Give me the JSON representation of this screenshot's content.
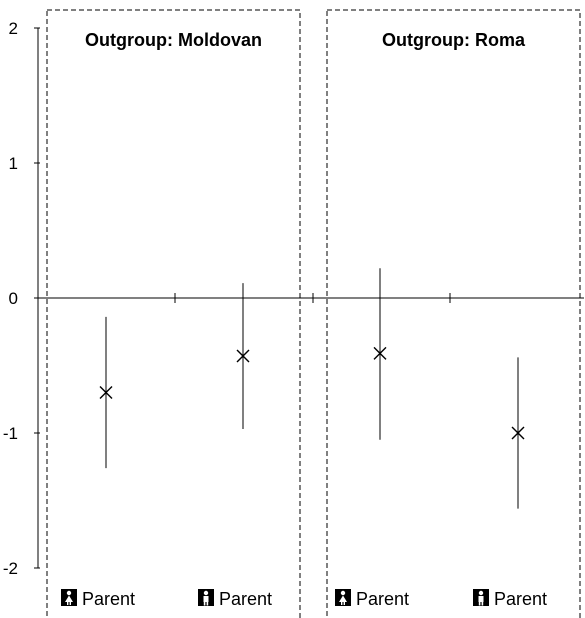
{
  "chart_data": {
    "type": "scatter",
    "error_bars": true,
    "marker": "x",
    "ylim": [
      -2,
      2
    ],
    "yticks": [
      "2",
      "1",
      "0",
      "-1",
      "-2"
    ],
    "ytick_values": [
      2,
      1,
      0,
      -1,
      -2
    ],
    "grid": false,
    "panels": [
      {
        "title": "Outgroup: Moldovan",
        "categories": [
          {
            "label": "Parent",
            "icon": "female-person-icon"
          },
          {
            "label": "Parent",
            "icon": "male-person-icon"
          }
        ],
        "points": [
          {
            "y": -0.7,
            "low": -1.26,
            "high": -0.14
          },
          {
            "y": -0.43,
            "low": -0.97,
            "high": 0.11
          }
        ]
      },
      {
        "title": "Outgroup: Roma",
        "categories": [
          {
            "label": "Parent",
            "icon": "female-person-icon"
          },
          {
            "label": "Parent",
            "icon": "male-person-icon"
          }
        ],
        "points": [
          {
            "y": -0.41,
            "low": -1.05,
            "high": 0.22
          },
          {
            "y": -1.0,
            "low": -1.56,
            "high": -0.44
          }
        ]
      }
    ]
  }
}
